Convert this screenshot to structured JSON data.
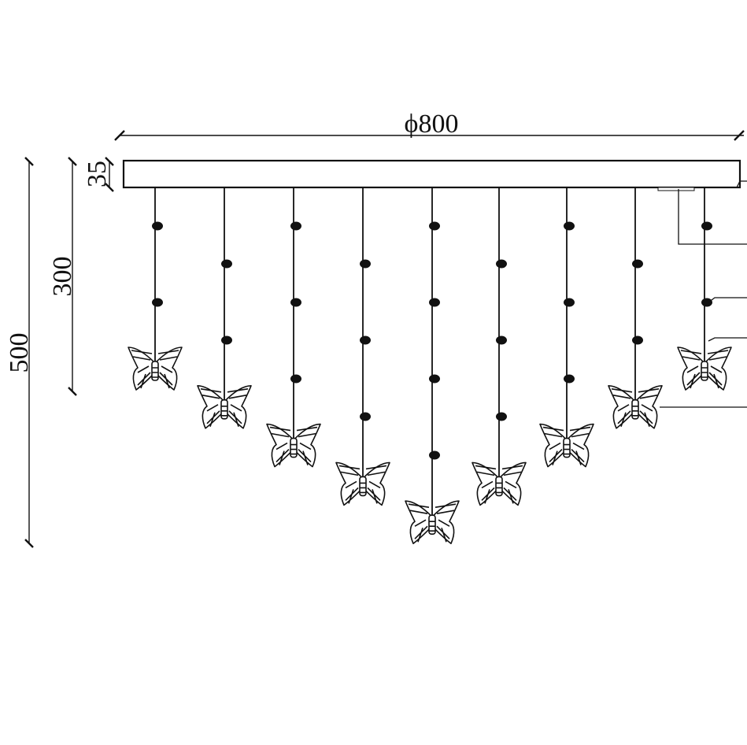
{
  "dimensions": {
    "diameter": "ϕ800",
    "canopy_height": "35",
    "drop_short": "300",
    "drop_total": "500"
  },
  "pendants": [
    {
      "beads": 2,
      "level": 0
    },
    {
      "beads": 2,
      "level": 1
    },
    {
      "beads": 3,
      "level": 2
    },
    {
      "beads": 3,
      "level": 3
    },
    {
      "beads": 4,
      "level": 4
    },
    {
      "beads": 3,
      "level": 3
    },
    {
      "beads": 3,
      "level": 2
    },
    {
      "beads": 2,
      "level": 1
    },
    {
      "beads": 2,
      "level": 0
    }
  ],
  "colors": {
    "line": "#111111",
    "background": "#ffffff"
  }
}
